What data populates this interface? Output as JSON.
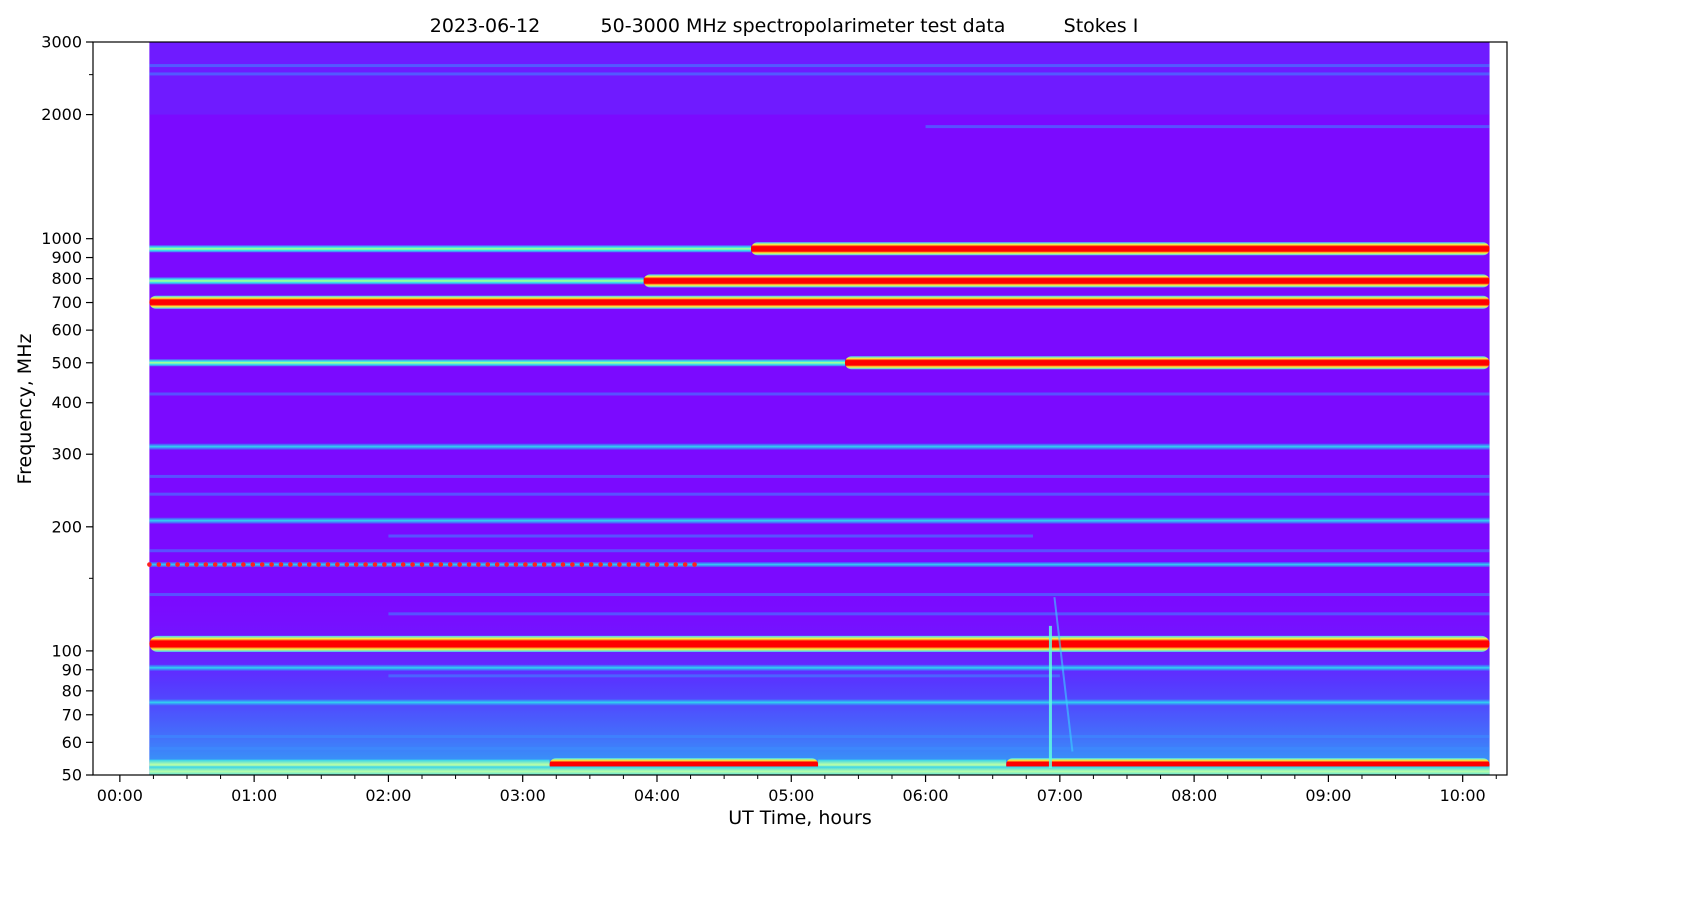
{
  "chart_data": {
    "type": "heatmap",
    "title_parts": {
      "date": "2023-06-12",
      "description": "50-3000 MHz spectropolarimeter test data",
      "parameter": "Stokes I"
    },
    "xlabel": "UT Time, hours",
    "ylabel": "Frequency, MHz",
    "xlim_hours": [
      -0.2,
      10.33
    ],
    "data_x_range_hours": [
      0.22,
      10.2
    ],
    "ylim": [
      50,
      3000
    ],
    "y_scale": "log",
    "x_ticks": [
      {
        "value": 0,
        "label": "00:00"
      },
      {
        "value": 1,
        "label": "01:00"
      },
      {
        "value": 2,
        "label": "02:00"
      },
      {
        "value": 3,
        "label": "03:00"
      },
      {
        "value": 4,
        "label": "04:00"
      },
      {
        "value": 5,
        "label": "05:00"
      },
      {
        "value": 6,
        "label": "06:00"
      },
      {
        "value": 7,
        "label": "07:00"
      },
      {
        "value": 8,
        "label": "08:00"
      },
      {
        "value": 9,
        "label": "09:00"
      },
      {
        "value": 10,
        "label": "10:00"
      }
    ],
    "y_ticks": [
      {
        "value": 50,
        "label": "50"
      },
      {
        "value": 60,
        "label": "60"
      },
      {
        "value": 70,
        "label": "70"
      },
      {
        "value": 80,
        "label": "80"
      },
      {
        "value": 90,
        "label": "90"
      },
      {
        "value": 100,
        "label": "100"
      },
      {
        "value": 200,
        "label": "200"
      },
      {
        "value": 300,
        "label": "300"
      },
      {
        "value": 400,
        "label": "400"
      },
      {
        "value": 500,
        "label": "500"
      },
      {
        "value": 600,
        "label": "600"
      },
      {
        "value": 700,
        "label": "700"
      },
      {
        "value": 800,
        "label": "800"
      },
      {
        "value": 900,
        "label": "900"
      },
      {
        "value": 1000,
        "label": "1000"
      },
      {
        "value": 2000,
        "label": "2000"
      },
      {
        "value": 3000,
        "label": "3000"
      }
    ],
    "y_minor_ticks": [
      150,
      2500
    ],
    "colormap": "rainbow",
    "background_color": "#7b0aff",
    "bands": [
      {
        "freq": 104,
        "kind": "strong",
        "t0": 0.22,
        "t1": 10.2
      },
      {
        "freq": 701,
        "kind": "strong",
        "t0": 0.22,
        "t1": 10.2
      },
      {
        "freq": 500,
        "kind": "strong",
        "t0": 5.4,
        "t1": 10.2
      },
      {
        "freq": 500,
        "kind": "medium",
        "t0": 0.22,
        "t1": 5.4
      },
      {
        "freq": 790,
        "kind": "strong",
        "t0": 3.9,
        "t1": 10.2
      },
      {
        "freq": 790,
        "kind": "medium",
        "t0": 0.22,
        "t1": 3.9
      },
      {
        "freq": 945,
        "kind": "strong",
        "t0": 4.7,
        "t1": 10.2
      },
      {
        "freq": 945,
        "kind": "medium",
        "t0": 0.22,
        "t1": 4.7
      },
      {
        "freq": 53,
        "kind": "strong",
        "t0": 3.2,
        "t1": 5.2
      },
      {
        "freq": 53,
        "kind": "strong",
        "t0": 6.6,
        "t1": 10.2
      },
      {
        "freq": 53,
        "kind": "warm",
        "t0": 0.22,
        "t1": 3.2
      },
      {
        "freq": 53,
        "kind": "warm",
        "t0": 5.2,
        "t1": 6.6
      },
      {
        "freq": 51,
        "kind": "warm",
        "t0": 0.22,
        "t1": 10.2
      },
      {
        "freq": 162,
        "kind": "dotted",
        "t0": 0.22,
        "t1": 10.2
      },
      {
        "freq": 207,
        "kind": "cyan",
        "t0": 0.22,
        "t1": 10.2
      },
      {
        "freq": 313,
        "kind": "cyan",
        "t0": 0.22,
        "t1": 10.2
      },
      {
        "freq": 91,
        "kind": "cyan",
        "t0": 0.22,
        "t1": 10.2
      },
      {
        "freq": 75,
        "kind": "cyan",
        "t0": 0.22,
        "t1": 10.2
      },
      {
        "freq": 62,
        "kind": "faint",
        "t0": 0.22,
        "t1": 10.2
      },
      {
        "freq": 58,
        "kind": "faint",
        "t0": 0.22,
        "t1": 10.2
      },
      {
        "freq": 87,
        "kind": "faint",
        "t0": 2.0,
        "t1": 7.0
      },
      {
        "freq": 123,
        "kind": "faint",
        "t0": 2.0,
        "t1": 10.2
      },
      {
        "freq": 137,
        "kind": "faint",
        "t0": 0.22,
        "t1": 10.2
      },
      {
        "freq": 175,
        "kind": "faint",
        "t0": 0.22,
        "t1": 10.2
      },
      {
        "freq": 190,
        "kind": "faint",
        "t0": 2.0,
        "t1": 6.8
      },
      {
        "freq": 240,
        "kind": "faint",
        "t0": 0.22,
        "t1": 10.2
      },
      {
        "freq": 265,
        "kind": "faint",
        "t0": 0.22,
        "t1": 10.2
      },
      {
        "freq": 420,
        "kind": "faint",
        "t0": 0.22,
        "t1": 10.2
      },
      {
        "freq": 1870,
        "kind": "faint",
        "t0": 6.0,
        "t1": 10.2
      },
      {
        "freq": 2510,
        "kind": "faint",
        "t0": 0.22,
        "t1": 10.2
      },
      {
        "freq": 2630,
        "kind": "faint",
        "t0": 0.22,
        "t1": 10.2
      }
    ],
    "burst": {
      "time": 6.93,
      "f_low": 52,
      "f_high": 115
    }
  }
}
